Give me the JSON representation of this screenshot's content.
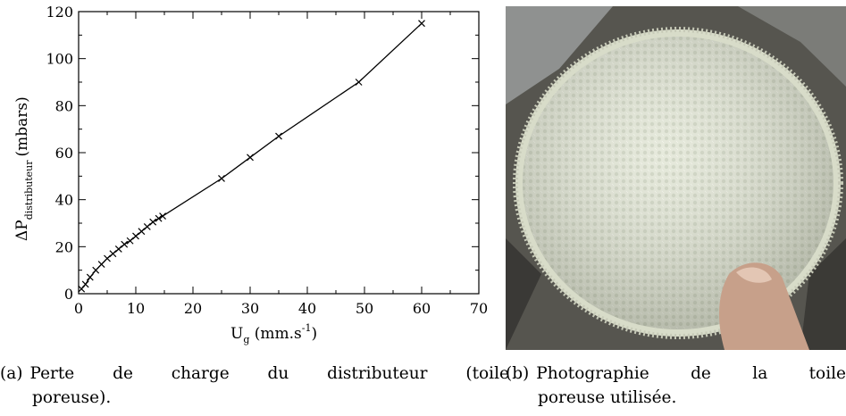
{
  "chart_data": {
    "type": "line",
    "marker": "x",
    "xlabel": "U",
    "xlabel_sub": "g",
    "xlabel_unit_pre": " (mm.s",
    "xlabel_unit_sup": "-1",
    "xlabel_unit_post": ")",
    "ylabel": "ΔP",
    "ylabel_sub": "distributeur",
    "ylabel_unit": "(mbars)",
    "xlim": [
      0,
      70
    ],
    "ylim": [
      0,
      120
    ],
    "xticks": [
      0,
      10,
      20,
      30,
      40,
      50,
      60,
      70
    ],
    "yticks": [
      0,
      20,
      40,
      60,
      80,
      100,
      120
    ],
    "grid": false,
    "series": [
      {
        "x": [
          0.5,
          1.2,
          2.0,
          3.0,
          4.0,
          5.0,
          6.0,
          7.0,
          8.0,
          9.0,
          10.0,
          11.0,
          12.0,
          13.0,
          14.0,
          14.7,
          25.0,
          30.0,
          35.0,
          49.0,
          60.0
        ],
        "y": [
          2,
          4,
          7,
          10,
          12.5,
          15,
          17,
          19,
          21,
          22.5,
          24.5,
          26.5,
          28.5,
          30.5,
          32,
          33,
          49,
          58,
          67,
          90,
          115
        ]
      }
    ]
  },
  "photo": {
    "subject": "toile poreuse"
  },
  "captions": {
    "a_tag": "(a)",
    "a_line1_words": [
      "Perte",
      "de",
      "charge",
      "du",
      "distributeur",
      "(toile"
    ],
    "a_line2": "poreuse).",
    "b_tag": "(b)",
    "b_line1_words": [
      "Photographie",
      "de",
      "la",
      "toile"
    ],
    "b_line2": "poreuse utilisée."
  }
}
